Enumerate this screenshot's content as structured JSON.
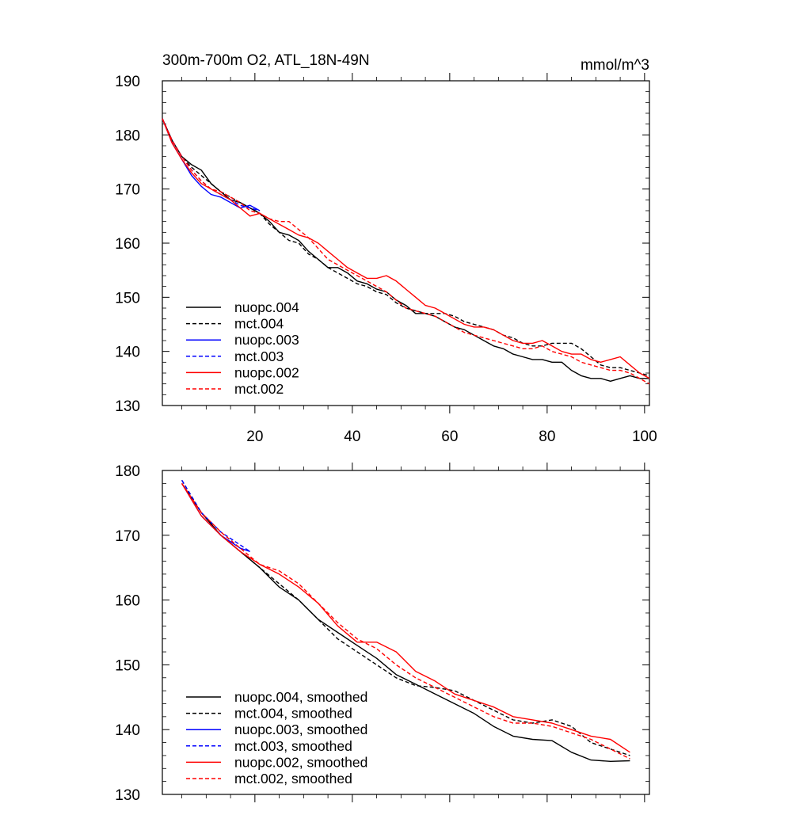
{
  "chart_data": [
    {
      "type": "line",
      "title": "300m-700m O2, ATL_18N-49N",
      "units": "mmol/m^3",
      "ylim": [
        130,
        190
      ],
      "xlim": [
        1,
        101
      ],
      "xticks": [
        20,
        40,
        60,
        80,
        100
      ],
      "yticks": [
        130,
        140,
        150,
        160,
        170,
        180,
        190
      ],
      "legend": "bottom-left",
      "series": [
        {
          "name": "nuopc.004",
          "color": "#000000",
          "dash": false,
          "x": [
            1,
            3,
            5,
            7,
            9,
            11,
            13,
            15,
            17,
            19,
            21,
            23,
            25,
            27,
            29,
            31,
            33,
            35,
            37,
            39,
            41,
            43,
            45,
            47,
            49,
            51,
            53,
            55,
            57,
            59,
            61,
            63,
            65,
            67,
            69,
            71,
            73,
            75,
            77,
            79,
            81,
            83,
            85,
            87,
            89,
            91,
            93,
            95,
            97,
            99,
            101
          ],
          "y": [
            183,
            179,
            176,
            174.5,
            173.5,
            171,
            169.5,
            168,
            167.5,
            166.5,
            165.5,
            164,
            162,
            161.5,
            160.5,
            158.5,
            157,
            155.5,
            155.5,
            154.5,
            153,
            152.5,
            151.5,
            151,
            149.5,
            148.5,
            147,
            147,
            146.5,
            145.5,
            144.5,
            144,
            143,
            142,
            141,
            140.5,
            139.5,
            139,
            138.5,
            138.5,
            138,
            138,
            136.5,
            135.5,
            135,
            135,
            134.5,
            135,
            135.5,
            135,
            135
          ]
        },
        {
          "name": "mct.004",
          "color": "#000000",
          "dash": true,
          "x": [
            1,
            3,
            5,
            7,
            9,
            11,
            13,
            15,
            17,
            19,
            21,
            23,
            25,
            27,
            29,
            31,
            33,
            35,
            37,
            39,
            41,
            43,
            45,
            47,
            49,
            51,
            53,
            55,
            57,
            59,
            61,
            63,
            65,
            67,
            69,
            71,
            73,
            75,
            77,
            79,
            81,
            83,
            85,
            87,
            89,
            91,
            93,
            95,
            97,
            99,
            101
          ],
          "y": [
            183,
            179,
            176,
            174,
            172.5,
            171,
            169.5,
            168.5,
            167.5,
            166.5,
            165.5,
            163.5,
            162,
            160.5,
            160,
            158,
            157,
            155.5,
            154.5,
            153.5,
            152.5,
            152,
            151,
            150.5,
            149,
            148,
            147.5,
            147,
            147,
            147,
            146.5,
            145.5,
            145,
            144.5,
            144,
            143,
            142.5,
            141.5,
            141,
            141,
            141.5,
            141.5,
            141.5,
            140.5,
            139,
            137.5,
            137,
            137,
            136.5,
            136,
            135.5
          ]
        },
        {
          "name": "nuopc.003",
          "color": "#0000ff",
          "dash": false,
          "x": [
            1,
            3,
            5,
            7,
            9,
            11,
            13,
            15,
            17,
            19,
            21
          ],
          "y": [
            183,
            178.5,
            175.5,
            172.5,
            170.5,
            169,
            168.5,
            167.5,
            166.5,
            167,
            166
          ]
        },
        {
          "name": "mct.003",
          "color": "#0000ff",
          "dash": true,
          "x": [
            1,
            3,
            5,
            7,
            9,
            11,
            13,
            15,
            17,
            19,
            21
          ],
          "y": [
            183,
            179,
            176,
            173.5,
            171.5,
            170,
            169,
            168,
            167,
            166.5,
            166
          ]
        },
        {
          "name": "nuopc.002",
          "color": "#ff0000",
          "dash": false,
          "x": [
            1,
            3,
            5,
            7,
            9,
            11,
            13,
            15,
            17,
            19,
            21,
            23,
            25,
            27,
            29,
            31,
            33,
            35,
            37,
            39,
            41,
            43,
            45,
            47,
            49,
            51,
            53,
            55,
            57,
            59,
            61,
            63,
            65,
            67,
            69,
            71,
            73,
            75,
            77,
            79,
            81,
            83,
            85,
            87,
            89,
            91,
            93,
            95,
            97,
            99,
            101
          ],
          "y": [
            183,
            178.5,
            175.5,
            173,
            171,
            170,
            169,
            168,
            166.5,
            165,
            165.5,
            164.5,
            163.5,
            162.5,
            161.5,
            161,
            160,
            158.5,
            157,
            155.5,
            154.5,
            153.5,
            153.5,
            154,
            153,
            151.5,
            150,
            148.5,
            148,
            147,
            146,
            145,
            144.5,
            144.5,
            144,
            143,
            142,
            141.5,
            141.5,
            142,
            141,
            140,
            139.5,
            139.5,
            138.5,
            138,
            138.5,
            139,
            137.5,
            136,
            135
          ]
        },
        {
          "name": "mct.002",
          "color": "#ff0000",
          "dash": true,
          "x": [
            1,
            3,
            5,
            7,
            9,
            11,
            13,
            15,
            17,
            19,
            21,
            23,
            25,
            27,
            29,
            31,
            33,
            35,
            37,
            39,
            41,
            43,
            45,
            47,
            49,
            51,
            53,
            55,
            57,
            59,
            61,
            63,
            65,
            67,
            69,
            71,
            73,
            75,
            77,
            79,
            81,
            83,
            85,
            87,
            89,
            91,
            93,
            95,
            97,
            99,
            101
          ],
          "y": [
            183,
            179,
            176,
            173.5,
            171.5,
            170,
            169.5,
            168.5,
            167.5,
            166,
            165.5,
            164.5,
            164,
            164,
            162.5,
            161,
            159,
            157,
            156,
            155,
            154,
            153,
            152,
            151,
            149.5,
            148,
            147.5,
            147,
            146.5,
            145.5,
            144.5,
            143.5,
            143,
            142.5,
            142,
            141.5,
            141,
            140.5,
            140.5,
            141,
            140,
            139.5,
            139,
            138,
            137.5,
            137,
            136.5,
            136.5,
            136,
            135,
            134
          ]
        }
      ]
    },
    {
      "type": "line",
      "ylim": [
        130,
        180
      ],
      "xlim": [
        1,
        101
      ],
      "xticks": [
        20,
        40,
        60,
        80,
        100
      ],
      "yticks": [
        130,
        140,
        150,
        160,
        170,
        180
      ],
      "legend": "bottom-left",
      "series": [
        {
          "name": "nuopc.004, smoothed",
          "color": "#000000",
          "dash": false,
          "x": [
            5,
            9,
            13,
            17,
            21,
            25,
            29,
            33,
            37,
            41,
            45,
            49,
            53,
            57,
            61,
            65,
            69,
            73,
            77,
            81,
            85,
            89,
            93,
            97
          ],
          "y": [
            178,
            173.5,
            170,
            167.5,
            165,
            162,
            160,
            157,
            155,
            153,
            151,
            148.5,
            147,
            145.5,
            144,
            142.5,
            140.5,
            139,
            138.5,
            138.3,
            136.5,
            135.3,
            135.1,
            135.2
          ]
        },
        {
          "name": "mct.004, smoothed",
          "color": "#000000",
          "dash": true,
          "x": [
            5,
            9,
            13,
            17,
            21,
            25,
            29,
            33,
            37,
            41,
            45,
            49,
            53,
            57,
            61,
            65,
            69,
            73,
            77,
            81,
            85,
            89,
            93,
            97
          ],
          "y": [
            178.5,
            173.5,
            170,
            167.5,
            165,
            162.5,
            160,
            157,
            154,
            152,
            150,
            148,
            146.8,
            146.5,
            146,
            144.5,
            143,
            141.5,
            141,
            141.5,
            140.5,
            138,
            137,
            136
          ]
        },
        {
          "name": "nuopc.003, smoothed",
          "color": "#0000ff",
          "dash": false,
          "x": [
            5,
            9,
            13,
            17,
            19
          ],
          "y": [
            178,
            173,
            170,
            168,
            167.5
          ]
        },
        {
          "name": "mct.003, smoothed",
          "color": "#0000ff",
          "dash": true,
          "x": [
            5,
            9,
            13,
            17,
            19
          ],
          "y": [
            178.5,
            173.5,
            170.5,
            168.5,
            167.5
          ]
        },
        {
          "name": "nuopc.002, smoothed",
          "color": "#ff0000",
          "dash": false,
          "x": [
            5,
            9,
            13,
            17,
            21,
            25,
            29,
            33,
            37,
            41,
            45,
            49,
            53,
            57,
            61,
            65,
            69,
            73,
            77,
            81,
            85,
            89,
            93,
            97
          ],
          "y": [
            178,
            173,
            170,
            167.5,
            165.5,
            164,
            162,
            159.5,
            156,
            153.5,
            153.5,
            152,
            149,
            147.5,
            145.5,
            144.5,
            143.5,
            142,
            141.5,
            141,
            140,
            139,
            138.5,
            136.5
          ]
        },
        {
          "name": "mct.002, smoothed",
          "color": "#ff0000",
          "dash": true,
          "x": [
            5,
            9,
            13,
            17,
            21,
            25,
            29,
            33,
            37,
            41,
            45,
            49,
            53,
            57,
            61,
            65,
            69,
            73,
            77,
            81,
            85,
            89,
            93,
            97
          ],
          "y": [
            178,
            173.5,
            170.5,
            168,
            165.5,
            164.5,
            162.5,
            159.5,
            156.5,
            154,
            152.5,
            150,
            148,
            146.5,
            145,
            143.5,
            142,
            141,
            141,
            140.5,
            139.5,
            138.5,
            137,
            135.5
          ]
        }
      ]
    }
  ]
}
